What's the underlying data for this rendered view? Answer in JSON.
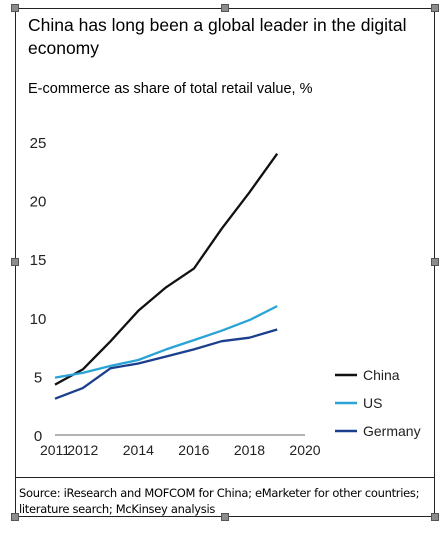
{
  "title": "China has long been a global leader in the digital economy",
  "source": "Source: iResearch and MOFCOM for China; eMarketer for other countries; literature search; McKinsey analysis",
  "colors": {
    "China": "#111111",
    "US": "#2aa3d6",
    "Germany": "#1b3f8c",
    "axis": "#666666",
    "text": "#222222"
  },
  "chart_data": {
    "type": "line",
    "title": "E-commerce as share of total retail value, %",
    "xlabel": "",
    "ylabel": "",
    "xlim": [
      2011,
      2020
    ],
    "ylim": [
      0,
      25
    ],
    "x_ticks": [
      2011,
      2012,
      2014,
      2016,
      2018,
      2020
    ],
    "y_ticks": [
      0,
      5,
      10,
      15,
      20,
      25
    ],
    "grid": false,
    "legend": "right",
    "series": [
      {
        "name": "China",
        "x": [
          2011,
          2012,
          2013,
          2014,
          2015,
          2016,
          2017,
          2018,
          2019
        ],
        "values": [
          4.3,
          5.6,
          8.0,
          10.6,
          12.6,
          14.2,
          17.6,
          20.7,
          24.0
        ]
      },
      {
        "name": "US",
        "x": [
          2011,
          2012,
          2013,
          2014,
          2015,
          2016,
          2017,
          2018,
          2019
        ],
        "values": [
          4.9,
          5.3,
          5.9,
          6.4,
          7.3,
          8.1,
          8.9,
          9.8,
          11.0
        ]
      },
      {
        "name": "Germany",
        "x": [
          2011,
          2012,
          2013,
          2014,
          2015,
          2016,
          2017,
          2018,
          2019
        ],
        "values": [
          3.1,
          4.0,
          5.7,
          6.1,
          6.7,
          7.3,
          8.0,
          8.3,
          9.0
        ]
      }
    ]
  }
}
